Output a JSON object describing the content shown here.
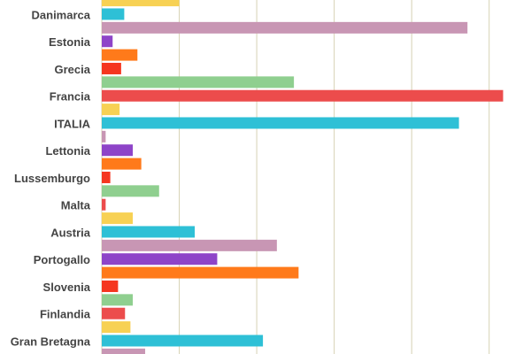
{
  "chart_data": {
    "type": "hbar",
    "categories": [
      null,
      "Danimarca",
      null,
      "Estonia",
      null,
      "Grecia",
      null,
      "Francia",
      null,
      "ITALIA",
      null,
      "Lettonia",
      null,
      "Lussemburgo",
      null,
      "Malta",
      null,
      "Austria",
      null,
      "Portogallo",
      null,
      "Slovenia",
      null,
      "Finlandia",
      null,
      "Gran Bretagna",
      null
    ],
    "values": [
      1.0,
      0.29,
      4.72,
      0.14,
      0.46,
      0.25,
      2.48,
      5.18,
      0.23,
      4.61,
      0.05,
      0.4,
      0.51,
      0.11,
      0.74,
      0.05,
      0.4,
      1.2,
      2.26,
      1.49,
      2.54,
      0.21,
      0.4,
      0.3,
      0.37,
      2.08,
      0.56
    ],
    "colors": [
      "#f7d154",
      "#2ec0d6",
      "#c896b4",
      "#8e44c8",
      "#ff7a1a",
      "#f5361f",
      "#8fcf8f",
      "#ec4c4c",
      "#f7d154",
      "#2ec0d6",
      "#c896b4",
      "#8e44c8",
      "#ff7a1a",
      "#f5361f",
      "#8fcf8f",
      "#ec4c4c",
      "#f7d154",
      "#2ec0d6",
      "#c896b4",
      "#8e44c8",
      "#ff7a1a",
      "#f5361f",
      "#8fcf8f",
      "#ec4c4c",
      "#f7d154",
      "#2ec0d6",
      "#c896b4"
    ],
    "xlim": [
      0,
      5.54
    ],
    "xticks": [
      0,
      1,
      2,
      3,
      4,
      5
    ],
    "grid": true
  }
}
